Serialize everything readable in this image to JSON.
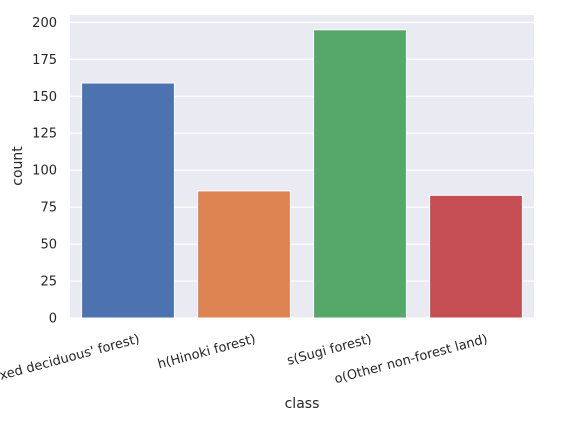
{
  "chart_data": {
    "type": "bar",
    "title": "",
    "xlabel": "class",
    "ylabel": "count",
    "categories": [
      "d(Mixed deciduous' forest)",
      "h(Hinoki forest)",
      "s(Sugi forest)",
      "o(Other non-forest land)"
    ],
    "values": [
      159,
      86,
      195,
      83
    ],
    "colors": [
      "#4c72b0",
      "#dd8452",
      "#55a868",
      "#c44e52"
    ],
    "ylim": [
      0,
      205
    ],
    "yticks": [
      "0",
      "25",
      "50",
      "75",
      "100",
      "125",
      "150",
      "175",
      "200"
    ],
    "grid": true,
    "background": "#eaeaf2"
  }
}
